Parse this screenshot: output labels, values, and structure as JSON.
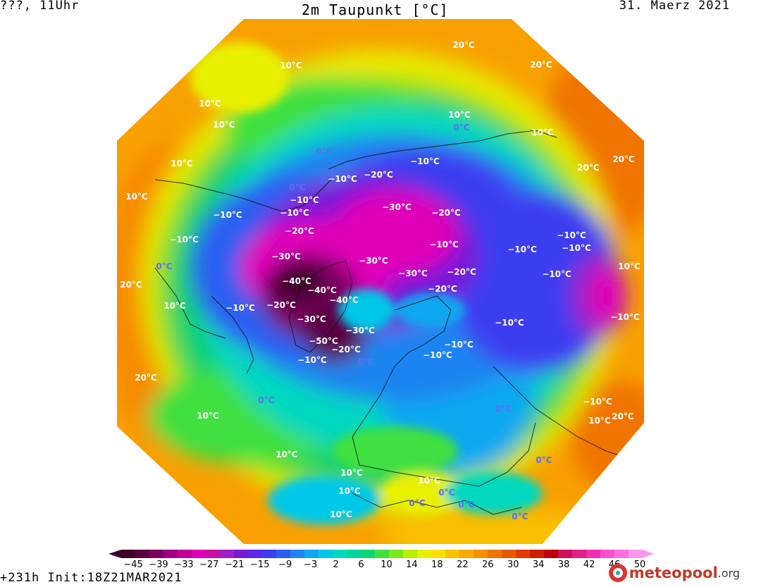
{
  "header": {
    "left": "???, 11Uhr",
    "title": "2m Taupunkt [°C]",
    "date": "31. Maerz 2021"
  },
  "footer": {
    "run": "+231h  Init:18Z21MAR2021",
    "logo_main": "meteopool",
    "logo_suffix": ".org"
  },
  "colorbar": {
    "ticks": [
      "-45",
      "-39",
      "-33",
      "-27",
      "-21",
      "-15",
      "-9",
      "-3",
      "2",
      "6",
      "10",
      "14",
      "18",
      "22",
      "26",
      "30",
      "34",
      "38",
      "42",
      "46",
      "50"
    ],
    "colors": [
      "#3d0028",
      "#5a0042",
      "#7a0060",
      "#a0007e",
      "#c40098",
      "#e000b8",
      "#c8109e",
      "#a020c8",
      "#7a18d8",
      "#5a2ae8",
      "#3c3cf0",
      "#2a5ef0",
      "#1e84f0",
      "#10a8f0",
      "#00c8e8",
      "#00d8c0",
      "#00d89a",
      "#10d870",
      "#40e040",
      "#7ae81a",
      "#b8f000",
      "#e8f000",
      "#f8e000",
      "#f8c400",
      "#f8a800",
      "#f88e00",
      "#f07400",
      "#e85a00",
      "#e03a00",
      "#d01e00",
      "#c0000a",
      "#d0105a",
      "#e0208a",
      "#f030b0",
      "#f850d0",
      "#fa70e0",
      "#fc98ec"
    ]
  },
  "map_labels": [
    {
      "text": "20°C",
      "color": "white"
    },
    {
      "text": "20°C",
      "color": "white"
    },
    {
      "text": "10°C",
      "color": "white"
    },
    {
      "text": "10°C",
      "color": "white"
    },
    {
      "text": "10°C",
      "color": "white"
    },
    {
      "text": "10°C",
      "color": "white"
    },
    {
      "text": "0°C",
      "color": "blue"
    },
    {
      "text": "10°C",
      "color": "white"
    },
    {
      "text": "0°C",
      "color": "blue"
    },
    {
      "text": "−10°C",
      "color": "white"
    },
    {
      "text": "20°C",
      "color": "white"
    },
    {
      "text": "20°C",
      "color": "white"
    },
    {
      "text": "10°C",
      "color": "white"
    },
    {
      "text": "−10°C",
      "color": "white"
    },
    {
      "text": "−20°C",
      "color": "white"
    },
    {
      "text": "−10°C",
      "color": "white"
    },
    {
      "text": "0°C",
      "color": "blue"
    },
    {
      "text": "10°C",
      "color": "white"
    },
    {
      "text": "−10°C",
      "color": "white"
    },
    {
      "text": "−30°C",
      "color": "white"
    },
    {
      "text": "−20°C",
      "color": "white"
    },
    {
      "text": "−10°C",
      "color": "white"
    },
    {
      "text": "−10°C",
      "color": "white"
    },
    {
      "text": "−20°C",
      "color": "white"
    },
    {
      "text": "−10°C",
      "color": "white"
    },
    {
      "text": "−10°C",
      "color": "white"
    },
    {
      "text": "−10°C",
      "color": "white"
    },
    {
      "text": "−10°C",
      "color": "white"
    },
    {
      "text": "0°C",
      "color": "blue"
    },
    {
      "text": "−30°C",
      "color": "white"
    },
    {
      "text": "−30°C",
      "color": "white"
    },
    {
      "text": "−30°C",
      "color": "white"
    },
    {
      "text": "−20°C",
      "color": "white"
    },
    {
      "text": "10°C",
      "color": "white"
    },
    {
      "text": "20°C",
      "color": "white"
    },
    {
      "text": "−40°C",
      "color": "white"
    },
    {
      "text": "−40°C",
      "color": "white"
    },
    {
      "text": "−20°C",
      "color": "white"
    },
    {
      "text": "−10°C",
      "color": "white"
    },
    {
      "text": "−20°C",
      "color": "white"
    },
    {
      "text": "10°C",
      "color": "white"
    },
    {
      "text": "−10°C",
      "color": "white"
    },
    {
      "text": "−40°C",
      "color": "white"
    },
    {
      "text": "−30°C",
      "color": "white"
    },
    {
      "text": "−30°C",
      "color": "white"
    },
    {
      "text": "−10°C",
      "color": "white"
    },
    {
      "text": "−10°C",
      "color": "white"
    },
    {
      "text": "−50°C",
      "color": "white"
    },
    {
      "text": "−20°C",
      "color": "white"
    },
    {
      "text": "−10°C",
      "color": "white"
    },
    {
      "text": "−10°C",
      "color": "white"
    },
    {
      "text": "−10°C",
      "color": "white"
    },
    {
      "text": "0°C",
      "color": "blue"
    },
    {
      "text": "20°C",
      "color": "white"
    },
    {
      "text": "0°C",
      "color": "blue"
    },
    {
      "text": "10°C",
      "color": "white"
    },
    {
      "text": "0°C",
      "color": "blue"
    },
    {
      "text": "−10°C",
      "color": "white"
    },
    {
      "text": "10°C",
      "color": "white"
    },
    {
      "text": "20°C",
      "color": "white"
    },
    {
      "text": "10°C",
      "color": "white"
    },
    {
      "text": "10°C",
      "color": "white"
    },
    {
      "text": "0°C",
      "color": "blue"
    },
    {
      "text": "10°C",
      "color": "white"
    },
    {
      "text": "0°C",
      "color": "blue"
    },
    {
      "text": "0°C",
      "color": "blue"
    },
    {
      "text": "10°C",
      "color": "white"
    },
    {
      "text": "0°C",
      "color": "blue"
    },
    {
      "text": "10°C",
      "color": "white"
    },
    {
      "text": "0°C",
      "color": "blue"
    }
  ]
}
